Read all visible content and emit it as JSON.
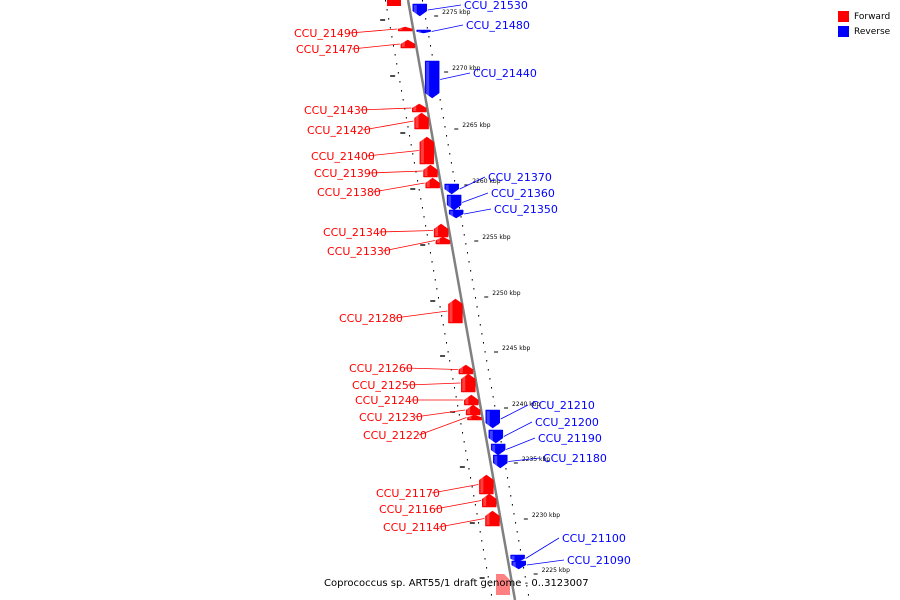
{
  "colors": {
    "forward": "#ff0000",
    "reverse": "#0000ff",
    "backbone": "#808080"
  },
  "legend": {
    "forward_label": "Forward",
    "reverse_label": "Reverse"
  },
  "caption": "Coprococcus sp. ART55/1 draft genome - 0..3123007",
  "kbp_ticks": [
    "2275 kbp",
    "2270 kbp",
    "2265 kbp",
    "2260 kbp",
    "2255 kbp",
    "2250 kbp",
    "2245 kbp",
    "2240 kbp",
    "2235 kbp",
    "2230 kbp",
    "2225 kbp"
  ],
  "genes": [
    {
      "id": "CCU_21530",
      "strand": "reverse"
    },
    {
      "id": "CCU_21490",
      "strand": "forward"
    },
    {
      "id": "CCU_21480",
      "strand": "reverse"
    },
    {
      "id": "CCU_21470",
      "strand": "forward"
    },
    {
      "id": "CCU_21440",
      "strand": "reverse"
    },
    {
      "id": "CCU_21430",
      "strand": "forward"
    },
    {
      "id": "CCU_21420",
      "strand": "forward"
    },
    {
      "id": "CCU_21400",
      "strand": "forward"
    },
    {
      "id": "CCU_21390",
      "strand": "forward"
    },
    {
      "id": "CCU_21380",
      "strand": "forward"
    },
    {
      "id": "CCU_21370",
      "strand": "reverse"
    },
    {
      "id": "CCU_21360",
      "strand": "reverse"
    },
    {
      "id": "CCU_21350",
      "strand": "reverse"
    },
    {
      "id": "CCU_21340",
      "strand": "forward"
    },
    {
      "id": "CCU_21330",
      "strand": "forward"
    },
    {
      "id": "CCU_21280",
      "strand": "forward"
    },
    {
      "id": "CCU_21260",
      "strand": "forward"
    },
    {
      "id": "CCU_21250",
      "strand": "forward"
    },
    {
      "id": "CCU_21240",
      "strand": "forward"
    },
    {
      "id": "CCU_21230",
      "strand": "forward"
    },
    {
      "id": "CCU_21220",
      "strand": "forward"
    },
    {
      "id": "CCU_21210",
      "strand": "reverse"
    },
    {
      "id": "CCU_21200",
      "strand": "reverse"
    },
    {
      "id": "CCU_21190",
      "strand": "reverse"
    },
    {
      "id": "CCU_21180",
      "strand": "reverse"
    },
    {
      "id": "CCU_21170",
      "strand": "forward"
    },
    {
      "id": "CCU_21160",
      "strand": "forward"
    },
    {
      "id": "CCU_21140",
      "strand": "forward"
    },
    {
      "id": "CCU_21100",
      "strand": "reverse"
    },
    {
      "id": "CCU_21090",
      "strand": "reverse"
    }
  ]
}
